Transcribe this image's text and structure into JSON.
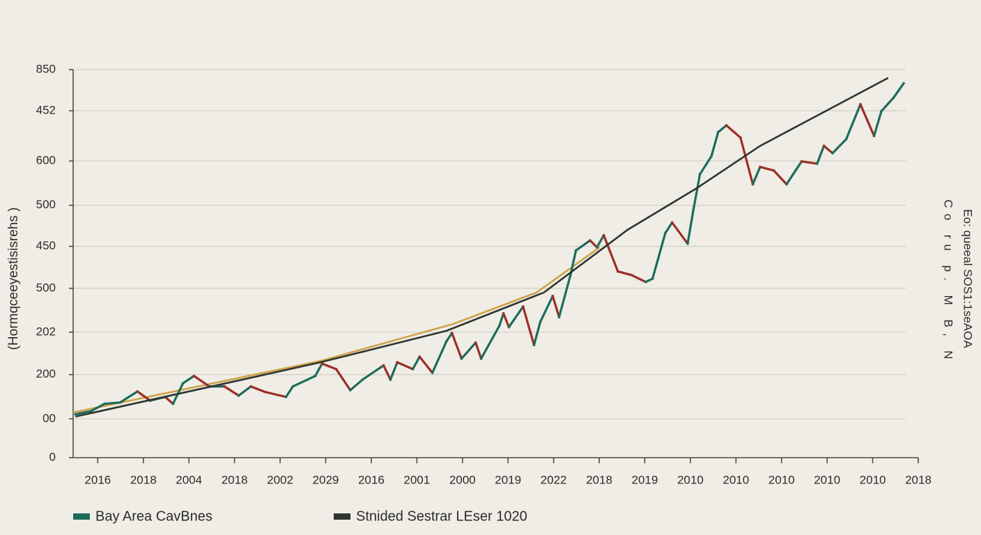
{
  "chart_data": {
    "type": "line",
    "y_axis_label": "(Hormqceeyestisisrehs )",
    "right_annotations": [
      "Eo: queeal SOS1:1seAOA",
      "Co ru p. M B, N"
    ],
    "xlim": [
      -0.54,
      18
    ],
    "xticks": [
      {
        "value": 0,
        "label": "2016"
      },
      {
        "value": 1,
        "label": "2018"
      },
      {
        "value": 2,
        "label": "2004"
      },
      {
        "value": 3,
        "label": "2018"
      },
      {
        "value": 4,
        "label": "2002"
      },
      {
        "value": 5,
        "label": "2029"
      },
      {
        "value": 6,
        "label": "2016"
      },
      {
        "value": 7,
        "label": "2001"
      },
      {
        "value": 8,
        "label": "2000"
      },
      {
        "value": 9,
        "label": "2019"
      },
      {
        "value": 10,
        "label": "2022"
      },
      {
        "value": 11,
        "label": "2018"
      },
      {
        "value": 12,
        "label": "2019"
      },
      {
        "value": 13,
        "label": "2010"
      },
      {
        "value": 14,
        "label": "2010"
      },
      {
        "value": 15,
        "label": "2010"
      },
      {
        "value": 16,
        "label": "2010"
      },
      {
        "value": 17,
        "label": "2010"
      },
      {
        "value": 18,
        "label": "2018"
      }
    ],
    "ylim": [
      0,
      850
    ],
    "yticks": [
      {
        "value": 0,
        "label": "0"
      },
      {
        "value": 85,
        "label": "00"
      },
      {
        "value": 182,
        "label": "200"
      },
      {
        "value": 275,
        "label": "202"
      },
      {
        "value": 371,
        "label": "500"
      },
      {
        "value": 463,
        "label": "450"
      },
      {
        "value": 553,
        "label": "500"
      },
      {
        "value": 650,
        "label": "600"
      },
      {
        "value": 760,
        "label": "452"
      },
      850
    ],
    "grid": true,
    "series": [
      {
        "name": "Bay Area CavBnes",
        "color": "#1c6b5b",
        "down_color": "#9b2e26",
        "style": "updown",
        "x": [
          -0.49,
          -0.15,
          0.15,
          0.49,
          0.87,
          1.15,
          1.48,
          1.65,
          1.87,
          2.11,
          2.45,
          2.78,
          3.09,
          3.36,
          3.67,
          4.13,
          4.28,
          4.77,
          4.92,
          5.23,
          5.54,
          5.81,
          6.27,
          6.42,
          6.57,
          6.91,
          7.06,
          7.34,
          7.65,
          7.77,
          7.98,
          8.29,
          8.41,
          8.81,
          8.9,
          9.02,
          9.33,
          9.57,
          9.71,
          9.98,
          10.12,
          10.37,
          10.49,
          10.8,
          10.95,
          11.1,
          11.41,
          11.71,
          12.02,
          12.17,
          12.45,
          12.6,
          12.94,
          13.07,
          13.21,
          13.46,
          13.61,
          13.79,
          14.1,
          14.37,
          14.53,
          14.83,
          15.11,
          15.44,
          15.78,
          15.93,
          16.12,
          16.42,
          16.73,
          17.03,
          17.19,
          17.46,
          17.68
        ],
        "values": [
          95,
          102,
          118,
          121,
          145,
          125,
          133,
          118,
          163,
          179,
          156,
          156,
          136,
          156,
          144,
          133,
          156,
          179,
          206,
          194,
          148,
          171,
          202,
          171,
          209,
          194,
          221,
          186,
          255,
          273,
          217,
          252,
          217,
          289,
          316,
          286,
          331,
          247,
          298,
          354,
          308,
          400,
          454,
          476,
          461,
          487,
          408,
          400,
          385,
          392,
          492,
          515,
          469,
          545,
          621,
          660,
          713,
          728,
          701,
          599,
          637,
          629,
          599,
          649,
          644,
          683,
          667,
          698,
          774,
          705,
          759,
          789,
          820
        ]
      },
      {
        "name": "Stnided Sestrar LEser 1020",
        "color": "#2c3531",
        "style": "line",
        "x": [
          -0.49,
          4.89,
          7.65,
          9.79,
          11.62,
          13.15,
          14.53,
          17.34
        ],
        "values": [
          90,
          209,
          278,
          362,
          499,
          591,
          683,
          832
        ]
      },
      {
        "color": "#d0a24a",
        "style": "line",
        "x": [
          -0.54,
          4.89,
          7.8,
          9.63,
          11.01
        ],
        "values": [
          99,
          212,
          293,
          362,
          461
        ]
      }
    ]
  }
}
